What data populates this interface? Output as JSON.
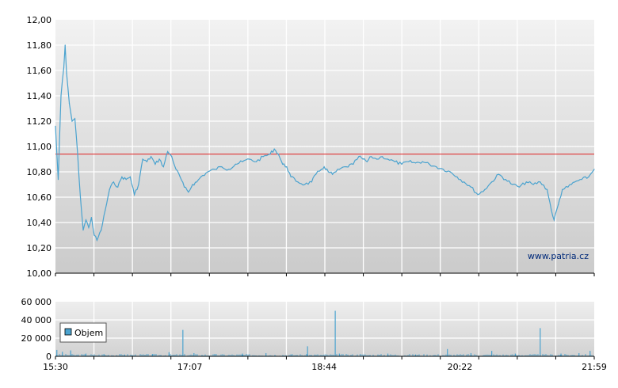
{
  "chart_data": [
    {
      "type": "line",
      "x_unit": "time",
      "xlim": [
        "15:30",
        "21:59"
      ],
      "ylim": [
        10.0,
        12.0
      ],
      "y_ticks": [
        "10,00",
        "10,20",
        "10,40",
        "10,60",
        "10,80",
        "11,00",
        "11,20",
        "11,40",
        "11,60",
        "11,80",
        "12,00"
      ],
      "grid": true,
      "reference_line": {
        "y": 10.94,
        "color": "#e02020"
      },
      "series": [
        {
          "color": "#4ba3cf",
          "points": [
            [
              "15:30",
              11.16
            ],
            [
              "15:32",
              10.74
            ],
            [
              "15:34",
              11.4
            ],
            [
              "15:36",
              11.62
            ],
            [
              "15:37",
              11.8
            ],
            [
              "15:38",
              11.58
            ],
            [
              "15:40",
              11.34
            ],
            [
              "15:42",
              11.2
            ],
            [
              "15:44",
              11.22
            ],
            [
              "15:46",
              10.94
            ],
            [
              "15:48",
              10.6
            ],
            [
              "15:50",
              10.34
            ],
            [
              "15:52",
              10.42
            ],
            [
              "15:54",
              10.36
            ],
            [
              "15:56",
              10.44
            ],
            [
              "15:58",
              10.3
            ],
            [
              "16:00",
              10.26
            ],
            [
              "16:03",
              10.34
            ],
            [
              "16:06",
              10.5
            ],
            [
              "16:09",
              10.66
            ],
            [
              "16:12",
              10.72
            ],
            [
              "16:15",
              10.68
            ],
            [
              "16:18",
              10.76
            ],
            [
              "16:21",
              10.74
            ],
            [
              "16:24",
              10.76
            ],
            [
              "16:27",
              10.62
            ],
            [
              "16:30",
              10.7
            ],
            [
              "16:33",
              10.9
            ],
            [
              "16:36",
              10.88
            ],
            [
              "16:39",
              10.92
            ],
            [
              "16:42",
              10.86
            ],
            [
              "16:45",
              10.9
            ],
            [
              "16:48",
              10.84
            ],
            [
              "16:51",
              10.96
            ],
            [
              "16:54",
              10.92
            ],
            [
              "16:57",
              10.82
            ],
            [
              "17:00",
              10.76
            ],
            [
              "17:03",
              10.68
            ],
            [
              "17:06",
              10.64
            ],
            [
              "17:09",
              10.7
            ],
            [
              "17:12",
              10.72
            ],
            [
              "17:15",
              10.76
            ],
            [
              "17:20",
              10.8
            ],
            [
              "17:25",
              10.82
            ],
            [
              "17:30",
              10.84
            ],
            [
              "17:35",
              10.82
            ],
            [
              "17:40",
              10.86
            ],
            [
              "17:45",
              10.88
            ],
            [
              "17:50",
              10.9
            ],
            [
              "17:55",
              10.88
            ],
            [
              "18:00",
              10.92
            ],
            [
              "18:05",
              10.94
            ],
            [
              "18:08",
              10.98
            ],
            [
              "18:11",
              10.94
            ],
            [
              "18:14",
              10.86
            ],
            [
              "18:17",
              10.84
            ],
            [
              "18:20",
              10.76
            ],
            [
              "18:25",
              10.72
            ],
            [
              "18:30",
              10.7
            ],
            [
              "18:35",
              10.72
            ],
            [
              "18:38",
              10.78
            ],
            [
              "18:42",
              10.82
            ],
            [
              "18:44",
              10.84
            ],
            [
              "18:47",
              10.8
            ],
            [
              "18:50",
              10.78
            ],
            [
              "18:55",
              10.82
            ],
            [
              "19:00",
              10.84
            ],
            [
              "19:05",
              10.86
            ],
            [
              "19:09",
              10.92
            ],
            [
              "19:12",
              10.9
            ],
            [
              "19:15",
              10.88
            ],
            [
              "19:18",
              10.92
            ],
            [
              "19:22",
              10.9
            ],
            [
              "19:26",
              10.92
            ],
            [
              "19:30",
              10.9
            ],
            [
              "19:35",
              10.88
            ],
            [
              "19:40",
              10.86
            ],
            [
              "19:45",
              10.88
            ],
            [
              "19:50",
              10.87
            ],
            [
              "19:55",
              10.88
            ],
            [
              "20:00",
              10.86
            ],
            [
              "20:05",
              10.84
            ],
            [
              "20:10",
              10.82
            ],
            [
              "20:15",
              10.8
            ],
            [
              "20:20",
              10.76
            ],
            [
              "20:25",
              10.72
            ],
            [
              "20:30",
              10.68
            ],
            [
              "20:35",
              10.62
            ],
            [
              "20:40",
              10.66
            ],
            [
              "20:45",
              10.72
            ],
            [
              "20:50",
              10.78
            ],
            [
              "20:55",
              10.74
            ],
            [
              "21:00",
              10.7
            ],
            [
              "21:05",
              10.68
            ],
            [
              "21:10",
              10.72
            ],
            [
              "21:15",
              10.7
            ],
            [
              "21:20",
              10.72
            ],
            [
              "21:25",
              10.66
            ],
            [
              "21:28",
              10.5
            ],
            [
              "21:30",
              10.42
            ],
            [
              "21:33",
              10.54
            ],
            [
              "21:36",
              10.66
            ],
            [
              "21:40",
              10.68
            ],
            [
              "21:45",
              10.72
            ],
            [
              "21:50",
              10.74
            ],
            [
              "21:55",
              10.76
            ],
            [
              "21:59",
              10.82
            ]
          ]
        }
      ]
    },
    {
      "type": "bar",
      "x_unit": "time",
      "xlim": [
        "15:30",
        "21:59"
      ],
      "ylim": [
        0,
        60000
      ],
      "y_ticks": [
        "0",
        "20 000",
        "40 000",
        "60 000"
      ],
      "x_ticks": [
        "15:30",
        "17:07",
        "18:44",
        "20:22",
        "21:59"
      ],
      "grid": true,
      "legend": {
        "placement": "left",
        "entries": [
          "Objem"
        ]
      },
      "series": [
        {
          "name": "Objem",
          "color": "#4ba3cf",
          "points": [
            [
              "15:31",
              7000
            ],
            [
              "15:35",
              5000
            ],
            [
              "15:41",
              6500
            ],
            [
              "15:52",
              3000
            ],
            [
              "16:05",
              2500
            ],
            [
              "16:20",
              2000
            ],
            [
              "16:40",
              2500
            ],
            [
              "16:52",
              4500
            ],
            [
              "17:02",
              29000
            ],
            [
              "17:10",
              3500
            ],
            [
              "17:25",
              2500
            ],
            [
              "17:45",
              3000
            ],
            [
              "18:02",
              3500
            ],
            [
              "18:20",
              2000
            ],
            [
              "18:32",
              11000
            ],
            [
              "18:52",
              50000
            ],
            [
              "18:55",
              3000
            ],
            [
              "19:10",
              2500
            ],
            [
              "19:30",
              3000
            ],
            [
              "19:50",
              2000
            ],
            [
              "20:13",
              8000
            ],
            [
              "20:30",
              3500
            ],
            [
              "20:45",
              6000
            ],
            [
              "21:02",
              3000
            ],
            [
              "21:20",
              31000
            ],
            [
              "21:35",
              3000
            ],
            [
              "21:48",
              3500
            ],
            [
              "21:56",
              6000
            ]
          ]
        }
      ]
    }
  ],
  "watermark": "www.patria.cz"
}
